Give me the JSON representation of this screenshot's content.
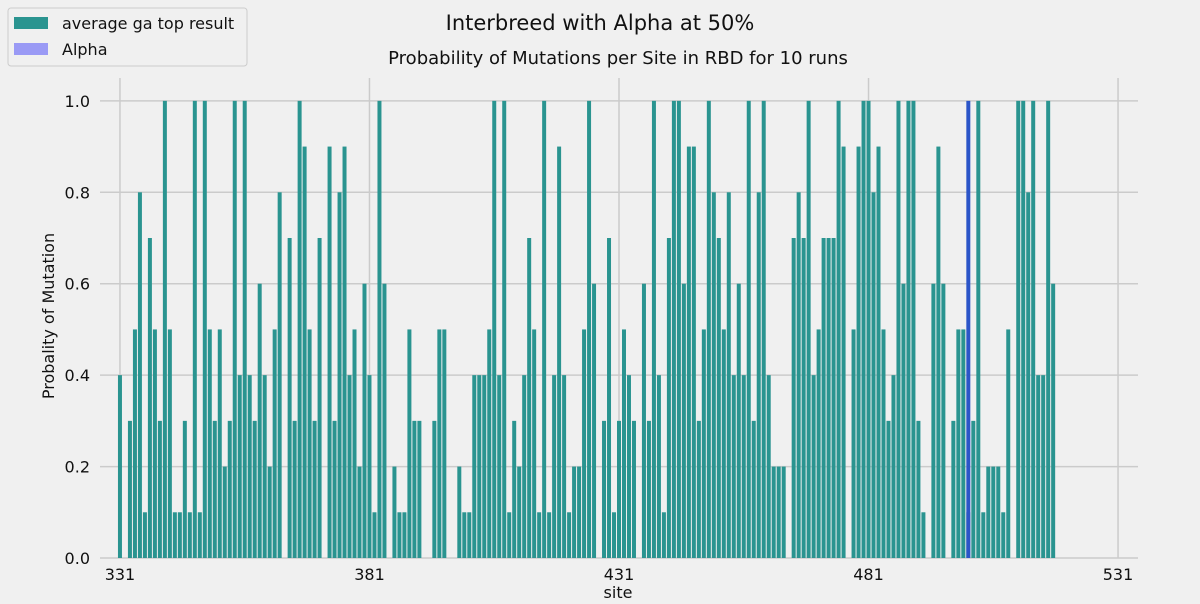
{
  "chart_data": {
    "type": "bar",
    "suptitle": "Interbreed with Alpha at 50%",
    "title": "Probability of Mutations per Site in RBD for 10 runs",
    "xlabel": "site",
    "ylabel": "Probality of Mutation",
    "xlim": [
      327,
      535
    ],
    "ylim": [
      0,
      1.05
    ],
    "xticks": [
      331,
      381,
      431,
      481,
      531
    ],
    "yticks": [
      0.0,
      0.2,
      0.4,
      0.6,
      0.8,
      1.0
    ],
    "grid": true,
    "legend": {
      "placement": "top-left",
      "entries": [
        "average ga top result",
        "Alpha"
      ]
    },
    "colors": {
      "average": "#2a9490",
      "alpha": "#9a9af5",
      "alpha_bar": "#2b55c8",
      "background": "#f0f0f0",
      "grid": "#cbcbcb"
    },
    "series": [
      {
        "name": "average ga top result",
        "x_start": 331,
        "values": [
          0.4,
          0,
          0.3,
          0.5,
          0.8,
          0.1,
          0.7,
          0.5,
          0.3,
          1.0,
          0.5,
          0.1,
          0.1,
          0.3,
          0.1,
          1.0,
          0.1,
          1.0,
          0.5,
          0.3,
          0.5,
          0.2,
          0.3,
          1.0,
          0.4,
          1.0,
          0.4,
          0.3,
          0.6,
          0.4,
          0.2,
          0.5,
          0.8,
          0,
          0.7,
          0.3,
          1.0,
          0.9,
          0.5,
          0.3,
          0.7,
          0,
          0.9,
          0.3,
          0.8,
          0.9,
          0.4,
          0.5,
          0.2,
          0.6,
          0.4,
          0.1,
          1.0,
          0.6,
          0,
          0.2,
          0.1,
          0.1,
          0.5,
          0.3,
          0.3,
          0,
          0,
          0.3,
          0.5,
          0.5,
          0,
          0,
          0.2,
          0.1,
          0.1,
          0.4,
          0.4,
          0.4,
          0.5,
          1.0,
          0.4,
          1.0,
          0.1,
          0.3,
          0.2,
          0.4,
          0.7,
          0.5,
          0.1,
          1.0,
          0.1,
          0.4,
          0.9,
          0.4,
          0.1,
          0.2,
          0.2,
          0.5,
          1.0,
          0.6,
          0,
          0.3,
          0.7,
          0.1,
          0.3,
          0.5,
          0.4,
          0.3,
          0,
          0.6,
          0.3,
          1.0,
          0.4,
          0.1,
          0.7,
          1.0,
          1.0,
          0.6,
          0.9,
          0.9,
          0.3,
          0.5,
          1.0,
          0.8,
          0.7,
          0.5,
          0.8,
          0.4,
          0.6,
          0.4,
          1.0,
          0.3,
          0.8,
          1.0,
          0.4,
          0.2,
          0.2,
          0.2,
          0,
          0.7,
          0.8,
          0.7,
          1.0,
          0.4,
          0.5,
          0.7,
          0.7,
          0.7,
          1.0,
          0.9,
          0,
          0.5,
          0.9,
          1.0,
          1.0,
          0.8,
          0.9,
          0.5,
          0.3,
          0.4,
          1.0,
          0.6,
          1.0,
          1.0,
          0.3,
          0.1,
          0,
          0.6,
          0.9,
          0.6,
          0,
          0.3,
          0.5,
          0.5,
          0.1,
          0.3,
          1.0,
          0.1,
          0.2,
          0.2,
          0.2,
          0.1,
          0.5,
          0,
          1.0,
          1.0,
          0.8,
          1.0,
          0.4,
          0.4,
          1.0,
          0.6
        ]
      },
      {
        "name": "Alpha",
        "x": [
          501
        ],
        "values": [
          1.0
        ]
      }
    ]
  }
}
